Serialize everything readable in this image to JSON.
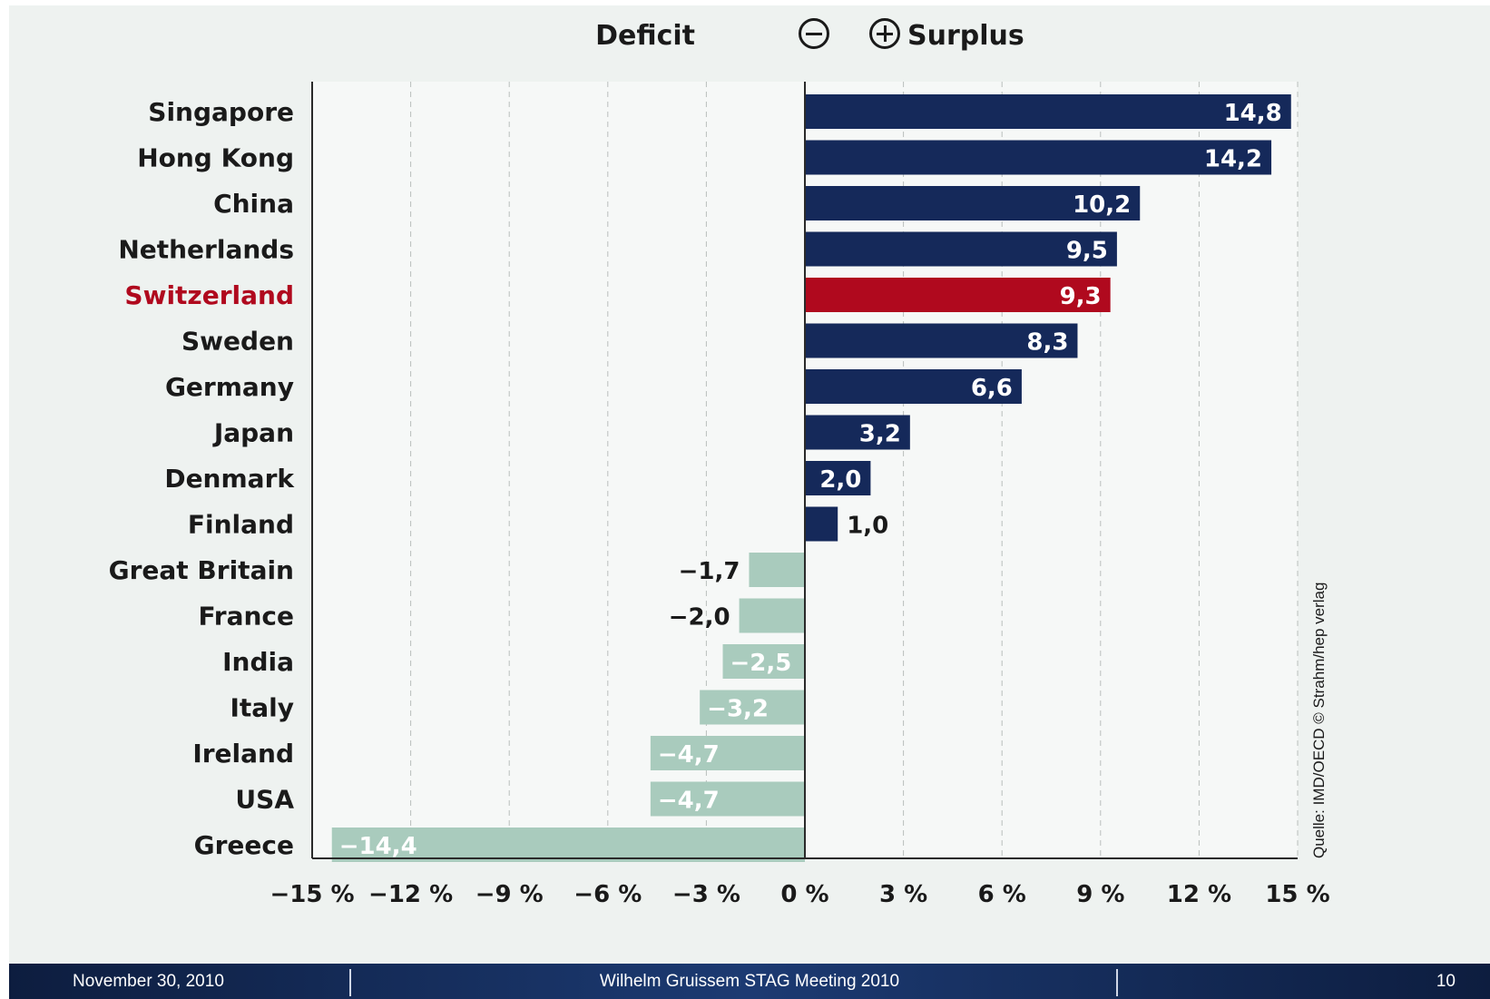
{
  "legend": {
    "deficit_label": "Deficit",
    "surplus_label": "Surplus",
    "deficit_icon": "circle-minus-icon",
    "surplus_icon": "circle-plus-icon"
  },
  "source_note": "Quelle: IMD/OECD © Strahm/hep verlag",
  "footer": {
    "date": "November 30, 2010",
    "title": "Wilhelm Gruissem  STAG Meeting 2010",
    "page": "10"
  },
  "colors": {
    "surplus": "#15295a",
    "highlight": "#b0091e",
    "deficit": "#a9cbbd",
    "highlight_label": "#b0091e",
    "background": "#eef2f0"
  },
  "chart_data": {
    "type": "bar",
    "orientation": "horizontal",
    "categories": [
      "Singapore",
      "Hong Kong",
      "China",
      "Netherlands",
      "Switzerland",
      "Sweden",
      "Germany",
      "Japan",
      "Denmark",
      "Finland",
      "Great Britain",
      "France",
      "India",
      "Italy",
      "Ireland",
      "USA",
      "Greece"
    ],
    "values": [
      14.8,
      14.2,
      10.2,
      9.5,
      9.3,
      8.3,
      6.6,
      3.2,
      2.0,
      1.0,
      -1.7,
      -2.0,
      -2.5,
      -3.2,
      -4.7,
      -4.7,
      -14.4
    ],
    "value_labels": [
      "14,8",
      "14,2",
      "10,2",
      "9,5",
      "9,3",
      "8,3",
      "6,6",
      "3,2",
      "2,0",
      "1,0",
      "−1,7",
      "−2,0",
      "−2,5",
      "−3,2",
      "−4,7",
      "−4,7",
      "−14,4"
    ],
    "highlight": "Switzerland",
    "xlim": [
      -15,
      15
    ],
    "xticks": [
      -15,
      -12,
      -9,
      -6,
      -3,
      0,
      3,
      6,
      9,
      12,
      15
    ],
    "xtick_labels": [
      "−15 %",
      "−12 %",
      "−9 %",
      "−6 %",
      "−3 %",
      "0 %",
      "3 %",
      "6 %",
      "9 %",
      "12 %",
      "15 %"
    ],
    "grid": "vertical dashed",
    "title": "",
    "xlabel": "",
    "ylabel": ""
  }
}
